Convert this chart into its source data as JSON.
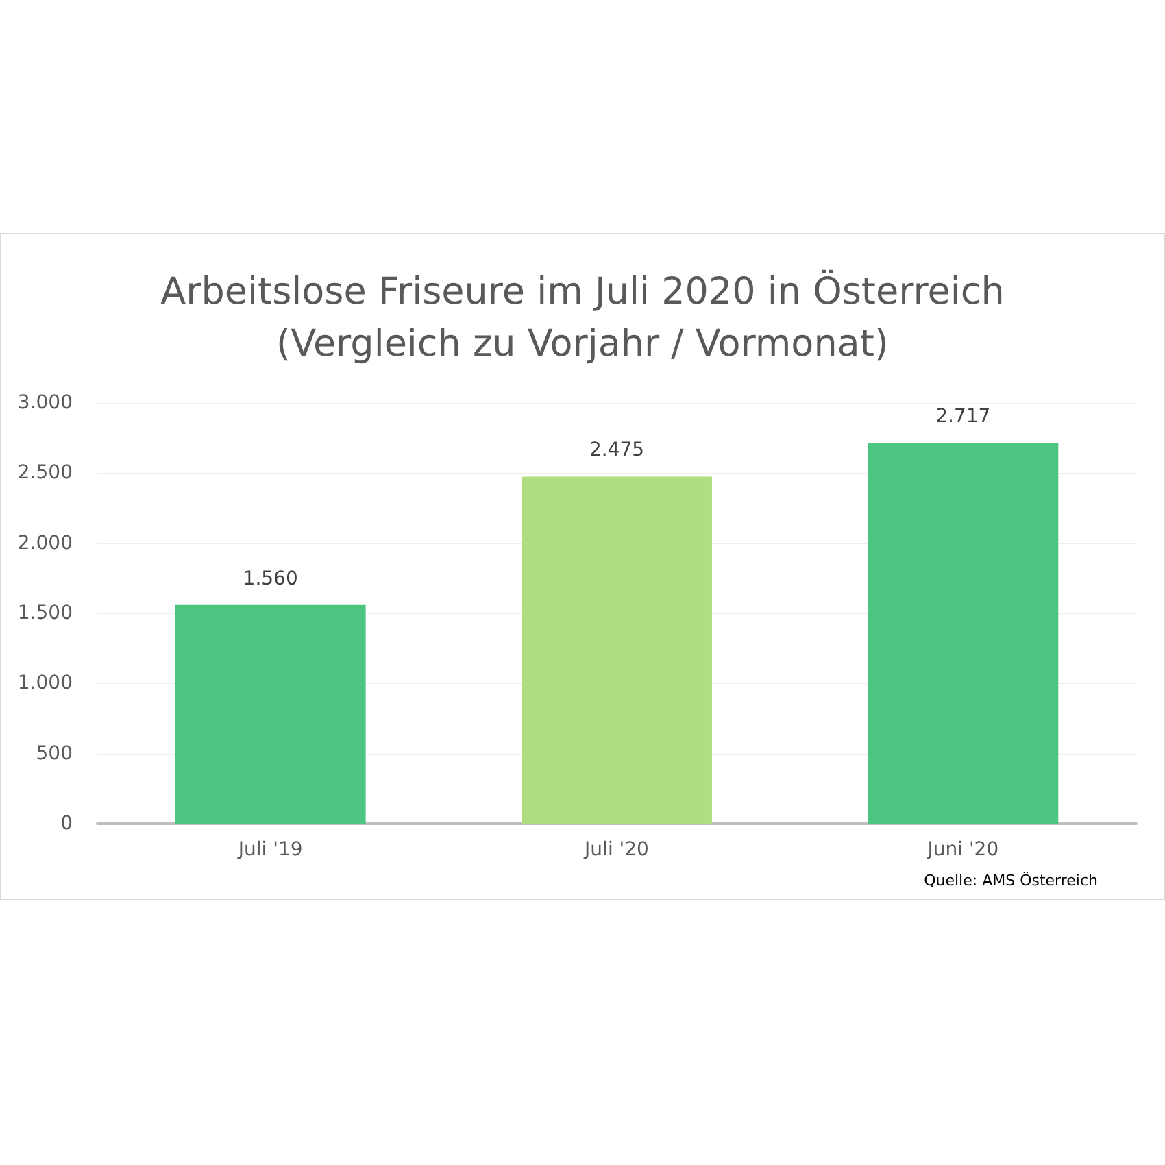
{
  "chart_data": {
    "type": "bar",
    "title": "Arbeitslose Friseure im Juli 2020 in Österreich\n(Vergleich zu Vorjahr / Vormonat)",
    "categories": [
      "Juli '19",
      "Juli '20",
      "Juni '20"
    ],
    "values": [
      1560,
      2475,
      2717
    ],
    "colors": [
      "#4cc581",
      "#b0dd80",
      "#4cc581"
    ],
    "value_labels": [
      "1.560",
      "2.475",
      "2.717"
    ],
    "ylim": [
      0,
      3000
    ],
    "yticks": [
      {
        "value": 0,
        "label": "0"
      },
      {
        "value": 500,
        "label": "500"
      },
      {
        "value": 1000,
        "label": "1.000"
      },
      {
        "value": 1500,
        "label": "1.500"
      },
      {
        "value": 2000,
        "label": "2.000"
      },
      {
        "value": 2500,
        "label": "2.500"
      },
      {
        "value": 3000,
        "label": "3.000"
      }
    ],
    "grid": "y",
    "annotations": [
      "Quelle: AMS Österreich"
    ]
  }
}
